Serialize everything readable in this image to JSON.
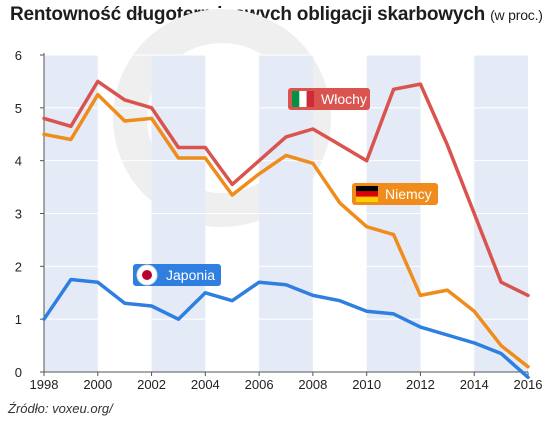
{
  "title": "Rentowność długoterminowych obligacji skarbowych",
  "title_unit": "(w proc.)",
  "source": "Źródło: voxeu.org/",
  "chart_data": {
    "type": "line",
    "title": "Rentowność długoterminowych obligacji skarbowych (w proc.)",
    "xlabel": "",
    "ylabel": "",
    "xlim": [
      1998,
      2016
    ],
    "ylim": [
      0,
      6
    ],
    "x_ticks": [
      1998,
      2000,
      2002,
      2004,
      2006,
      2008,
      2010,
      2012,
      2014,
      2016
    ],
    "y_ticks": [
      0,
      1,
      2,
      3,
      4,
      5,
      6
    ],
    "x": [
      1998,
      1999,
      2000,
      2001,
      2002,
      2003,
      2004,
      2005,
      2006,
      2007,
      2008,
      2009,
      2010,
      2011,
      2012,
      2013,
      2014,
      2015,
      2016
    ],
    "grid": "alternating vertical bands",
    "series": [
      {
        "name": "Włochy",
        "color": "#d9534f",
        "flag": [
          "#009246",
          "#ffffff",
          "#ce2b37"
        ],
        "values": [
          4.8,
          4.65,
          5.5,
          5.15,
          5.0,
          4.25,
          4.25,
          3.55,
          4.0,
          4.45,
          4.6,
          4.3,
          4.0,
          5.35,
          5.45,
          4.3,
          3.0,
          1.7,
          1.45
        ]
      },
      {
        "name": "Niemcy",
        "color": "#f08c1c",
        "flag": [
          "#000000",
          "#dd0000",
          "#ffce00"
        ],
        "values": [
          4.5,
          4.4,
          5.25,
          4.75,
          4.8,
          4.05,
          4.05,
          3.35,
          3.75,
          4.1,
          3.95,
          3.2,
          2.75,
          2.6,
          1.45,
          1.55,
          1.15,
          0.5,
          0.1
        ]
      },
      {
        "name": "Japonia",
        "color": "#2f7fe0",
        "flag": [
          "#ffffff",
          "#bc002d"
        ],
        "values": [
          1.0,
          1.75,
          1.7,
          1.3,
          1.25,
          1.0,
          1.5,
          1.35,
          1.7,
          1.65,
          1.45,
          1.35,
          1.15,
          1.1,
          0.85,
          0.7,
          0.55,
          0.35,
          -0.1
        ]
      }
    ]
  }
}
